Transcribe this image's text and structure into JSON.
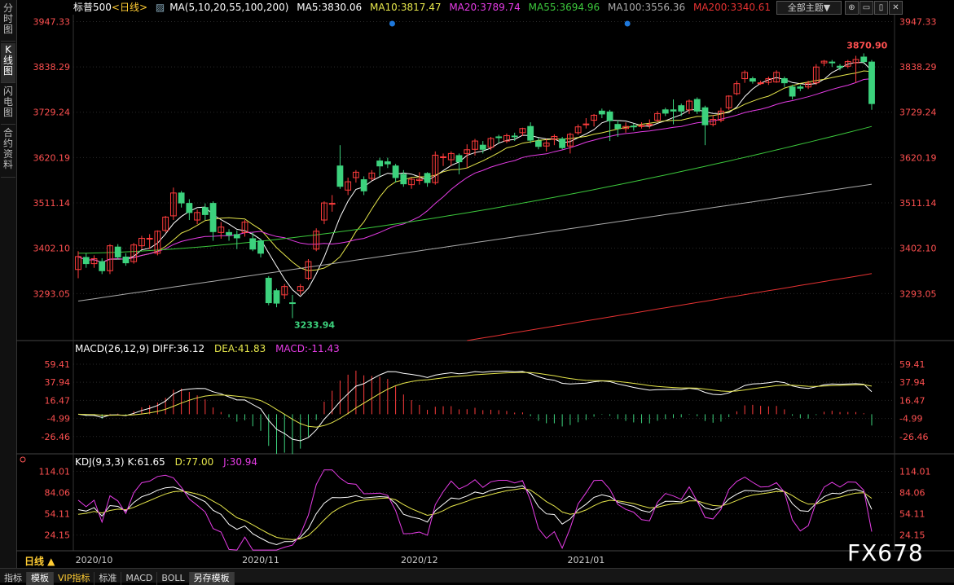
{
  "sidebar": {
    "tabs": [
      {
        "label": "分时图",
        "active": false
      },
      {
        "label": "K线图",
        "active": true
      },
      {
        "label": "闪电图",
        "active": false
      },
      {
        "label": "合约资料",
        "active": false
      }
    ]
  },
  "header": {
    "symbol": "标普500",
    "period_tag": "<日线>",
    "ma_params": "MA(5,10,20,55,100,200)",
    "ma5": "MA5:3830.06",
    "ma10": "MA10:3817.47",
    "ma20": "MA20:3789.74",
    "ma55": "MA55:3694.96",
    "ma100": "MA100:3556.36",
    "ma200": "MA200:3340.61",
    "theme_button": "全部主题▼",
    "window_buttons": [
      "⊕",
      "▭",
      "▯",
      "✕"
    ]
  },
  "colors": {
    "up": "#ff3c3c",
    "down": "#3cd27d",
    "ma5": "#ffffff",
    "ma10": "#e6e64b",
    "ma20": "#e63ce6",
    "ma55": "#3cc83c",
    "ma100": "#aaaaaa",
    "ma200": "#e63232",
    "axis_text": "#ff5050",
    "grid": "#2a2a2a",
    "dot": "#1e78dc"
  },
  "macd_title": {
    "params": "MACD(26,12,9)",
    "diff": "DIFF:36.12",
    "dea": "DEA:41.83",
    "macd": "MACD:-11.43"
  },
  "kdj_title": {
    "params": "KDJ(9,3,3)",
    "k": "K:61.65",
    "d": "D:77.00",
    "j": "J:30.94"
  },
  "chart_data": {
    "type": "candlestick",
    "price_axis": {
      "ticks": [
        "3947.33",
        "3838.29",
        "3729.24",
        "3620.19",
        "3511.14",
        "3402.10",
        "3293.05"
      ],
      "min": 3180,
      "max": 3960
    },
    "macd_axis": {
      "ticks": [
        "59.41",
        "37.94",
        "16.47",
        "-4.99",
        "-26.46"
      ],
      "min": -46,
      "max": 70
    },
    "kdj_axis": {
      "ticks": [
        "114.01",
        "84.06",
        "54.11",
        "24.15"
      ],
      "min": 2,
      "max": 118
    },
    "x_labels": [
      {
        "label": "2020/10",
        "index": 2
      },
      {
        "label": "2020/11",
        "index": 23
      },
      {
        "label": "2020/12",
        "index": 43
      },
      {
        "label": "2021/01",
        "index": 64
      }
    ],
    "annotations": {
      "high": "3870.90",
      "low": "3233.94"
    },
    "candles": [
      [
        3351,
        3382,
        3330,
        3395
      ],
      [
        3380,
        3365,
        3355,
        3390
      ],
      [
        3365,
        3377,
        3355,
        3385
      ],
      [
        3370,
        3348,
        3340,
        3378
      ],
      [
        3348,
        3408,
        3340,
        3412
      ],
      [
        3405,
        3381,
        3375,
        3412
      ],
      [
        3381,
        3367,
        3360,
        3390
      ],
      [
        3370,
        3410,
        3365,
        3415
      ],
      [
        3408,
        3426,
        3400,
        3432
      ],
      [
        3425,
        3426,
        3400,
        3436
      ],
      [
        3390,
        3443,
        3385,
        3445
      ],
      [
        3445,
        3477,
        3440,
        3480
      ],
      [
        3480,
        3535,
        3470,
        3548
      ],
      [
        3535,
        3511,
        3500,
        3540
      ],
      [
        3510,
        3488,
        3470,
        3520
      ],
      [
        3470,
        3488,
        3460,
        3495
      ],
      [
        3500,
        3483,
        3470,
        3510
      ],
      [
        3510,
        3442,
        3420,
        3515
      ],
      [
        3440,
        3453,
        3425,
        3465
      ],
      [
        3440,
        3434,
        3420,
        3448
      ],
      [
        3435,
        3427,
        3400,
        3445
      ],
      [
        3440,
        3465,
        3430,
        3470
      ],
      [
        3425,
        3400,
        3395,
        3440
      ],
      [
        3420,
        3390,
        3380,
        3425
      ],
      [
        3330,
        3271,
        3265,
        3335
      ],
      [
        3300,
        3270,
        3260,
        3305
      ],
      [
        3290,
        3310,
        3280,
        3316
      ],
      [
        3271,
        3270,
        3233.94,
        3290
      ],
      [
        3300,
        3310,
        3290,
        3316
      ],
      [
        3330,
        3370,
        3325,
        3376
      ],
      [
        3400,
        3443,
        3395,
        3450
      ],
      [
        3470,
        3511,
        3460,
        3515
      ],
      [
        3510,
        3510,
        3490,
        3530
      ],
      [
        3600,
        3551,
        3545,
        3650
      ],
      [
        3542,
        3562,
        3530,
        3572
      ],
      [
        3572,
        3585,
        3560,
        3590
      ],
      [
        3567,
        3540,
        3530,
        3575
      ],
      [
        3570,
        3583,
        3565,
        3590
      ],
      [
        3612,
        3600,
        3575,
        3620
      ],
      [
        3610,
        3605,
        3595,
        3620
      ],
      [
        3600,
        3572,
        3560,
        3605
      ],
      [
        3580,
        3557,
        3550,
        3590
      ],
      [
        3555,
        3568,
        3545,
        3572
      ],
      [
        3565,
        3568,
        3555,
        3585
      ],
      [
        3582,
        3560,
        3550,
        3585
      ],
      [
        3560,
        3626,
        3555,
        3635
      ],
      [
        3620,
        3622,
        3600,
        3630
      ],
      [
        3615,
        3630,
        3600,
        3635
      ],
      [
        3625,
        3610,
        3580,
        3630
      ],
      [
        3630,
        3639,
        3595,
        3652
      ],
      [
        3640,
        3660,
        3625,
        3665
      ],
      [
        3650,
        3640,
        3630,
        3660
      ],
      [
        3645,
        3666,
        3638,
        3670
      ],
      [
        3670,
        3669,
        3655,
        3675
      ],
      [
        3660,
        3673,
        3655,
        3678
      ],
      [
        3672,
        3671,
        3660,
        3680
      ],
      [
        3680,
        3690,
        3672,
        3692
      ],
      [
        3695,
        3662,
        3655,
        3705
      ],
      [
        3660,
        3647,
        3640,
        3668
      ],
      [
        3648,
        3655,
        3635,
        3665
      ],
      [
        3664,
        3671,
        3650,
        3676
      ],
      [
        3665,
        3644,
        3640,
        3670
      ],
      [
        3648,
        3676,
        3630,
        3680
      ],
      [
        3680,
        3694,
        3675,
        3700
      ],
      [
        3700,
        3701,
        3690,
        3715
      ],
      [
        3710,
        3722,
        3695,
        3725
      ],
      [
        3732,
        3725,
        3715,
        3738
      ],
      [
        3730,
        3709,
        3660,
        3735
      ],
      [
        3700,
        3690,
        3670,
        3710
      ],
      [
        3690,
        3695,
        3680,
        3705
      ],
      [
        3696,
        3694,
        3685,
        3702
      ],
      [
        3695,
        3697,
        3690,
        3705
      ],
      [
        3700,
        3700,
        3690,
        3712
      ],
      [
        3710,
        3726,
        3705,
        3732
      ],
      [
        3735,
        3727,
        3720,
        3740
      ],
      [
        3735,
        3732,
        3700,
        3760
      ],
      [
        3745,
        3732,
        3720,
        3750
      ],
      [
        3735,
        3756,
        3725,
        3760
      ],
      [
        3760,
        3732,
        3725,
        3765
      ],
      [
        3740,
        3699,
        3650,
        3745
      ],
      [
        3700,
        3712,
        3695,
        3722
      ],
      [
        3710,
        3732,
        3705,
        3740
      ],
      [
        3740,
        3768,
        3735,
        3770
      ],
      [
        3774,
        3798,
        3770,
        3805
      ],
      [
        3810,
        3825,
        3800,
        3830
      ],
      [
        3810,
        3804,
        3798,
        3815
      ],
      [
        3800,
        3800,
        3795,
        3805
      ],
      [
        3801,
        3810,
        3795,
        3815
      ],
      [
        3802,
        3825,
        3800,
        3830
      ],
      [
        3810,
        3800,
        3790,
        3815
      ],
      [
        3790,
        3768,
        3760,
        3795
      ],
      [
        3790,
        3787,
        3780,
        3795
      ],
      [
        3790,
        3799,
        3785,
        3805
      ],
      [
        3800,
        3838,
        3795,
        3845
      ],
      [
        3848,
        3852,
        3840,
        3855
      ],
      [
        3850,
        3848,
        3838,
        3855
      ],
      [
        3840,
        3837,
        3830,
        3845
      ],
      [
        3840,
        3851,
        3835,
        3855
      ],
      [
        3848,
        3856,
        3800,
        3865
      ],
      [
        3862,
        3851,
        3845,
        3870.9
      ],
      [
        3850,
        3750,
        3735,
        3855
      ]
    ]
  }
}
